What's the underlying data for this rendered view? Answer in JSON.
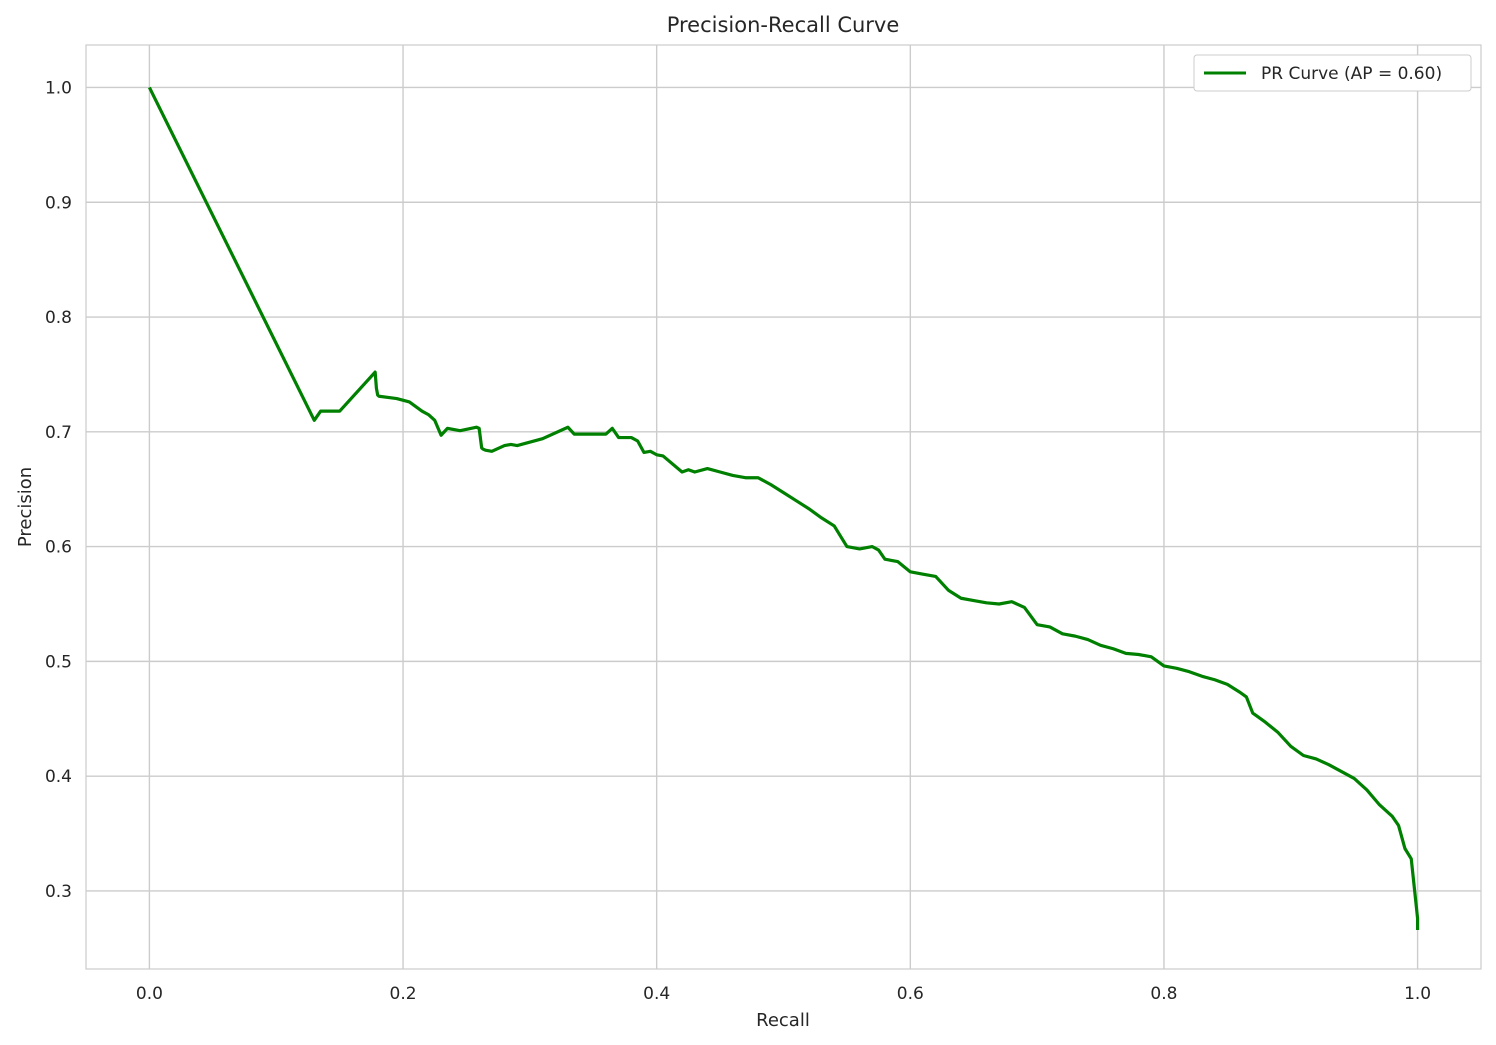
{
  "chart_data": {
    "type": "line",
    "title": "Precision-Recall Curve",
    "xlabel": "Recall",
    "ylabel": "Precision",
    "xlim": [
      -0.05,
      1.05
    ],
    "ylim": [
      0.232,
      1.037
    ],
    "x_ticks": [
      0.0,
      0.2,
      0.4,
      0.6,
      0.8,
      1.0
    ],
    "y_ticks": [
      0.3,
      0.4,
      0.5,
      0.6,
      0.7,
      0.8,
      0.9,
      1.0
    ],
    "grid": true,
    "legend_position": "top-right",
    "series": [
      {
        "name": "PR Curve (AP = 0.60)",
        "color": "#008000",
        "x": [
          0.0,
          0.13,
          0.135,
          0.15,
          0.178,
          0.179,
          0.18,
          0.181,
          0.195,
          0.205,
          0.21,
          0.215,
          0.22,
          0.225,
          0.23,
          0.235,
          0.245,
          0.258,
          0.26,
          0.262,
          0.263,
          0.265,
          0.27,
          0.28,
          0.285,
          0.29,
          0.31,
          0.33,
          0.335,
          0.34,
          0.36,
          0.365,
          0.37,
          0.38,
          0.385,
          0.39,
          0.395,
          0.4,
          0.405,
          0.42,
          0.425,
          0.43,
          0.44,
          0.45,
          0.46,
          0.47,
          0.48,
          0.49,
          0.5,
          0.51,
          0.52,
          0.53,
          0.54,
          0.55,
          0.56,
          0.57,
          0.575,
          0.58,
          0.59,
          0.6,
          0.61,
          0.62,
          0.63,
          0.64,
          0.65,
          0.66,
          0.67,
          0.68,
          0.69,
          0.7,
          0.71,
          0.72,
          0.73,
          0.74,
          0.75,
          0.76,
          0.77,
          0.78,
          0.79,
          0.8,
          0.81,
          0.82,
          0.83,
          0.84,
          0.85,
          0.86,
          0.865,
          0.87,
          0.88,
          0.89,
          0.9,
          0.91,
          0.92,
          0.93,
          0.94,
          0.95,
          0.96,
          0.97,
          0.98,
          0.985,
          0.99,
          0.995,
          1.0,
          1.0
        ],
        "y": [
          1.0,
          0.71,
          0.718,
          0.718,
          0.752,
          0.738,
          0.732,
          0.731,
          0.729,
          0.726,
          0.722,
          0.718,
          0.715,
          0.71,
          0.697,
          0.703,
          0.701,
          0.704,
          0.703,
          0.686,
          0.685,
          0.684,
          0.683,
          0.688,
          0.689,
          0.688,
          0.694,
          0.704,
          0.698,
          0.698,
          0.698,
          0.703,
          0.695,
          0.695,
          0.692,
          0.682,
          0.683,
          0.68,
          0.679,
          0.665,
          0.667,
          0.665,
          0.668,
          0.665,
          0.662,
          0.66,
          0.66,
          0.654,
          0.647,
          0.64,
          0.633,
          0.625,
          0.618,
          0.6,
          0.598,
          0.6,
          0.597,
          0.589,
          0.587,
          0.578,
          0.576,
          0.574,
          0.562,
          0.555,
          0.553,
          0.551,
          0.55,
          0.552,
          0.547,
          0.532,
          0.53,
          0.524,
          0.522,
          0.519,
          0.514,
          0.511,
          0.507,
          0.506,
          0.504,
          0.496,
          0.494,
          0.491,
          0.487,
          0.484,
          0.48,
          0.473,
          0.469,
          0.455,
          0.447,
          0.438,
          0.426,
          0.418,
          0.415,
          0.41,
          0.404,
          0.398,
          0.388,
          0.375,
          0.365,
          0.357,
          0.337,
          0.328,
          0.276,
          0.266
        ]
      }
    ]
  }
}
